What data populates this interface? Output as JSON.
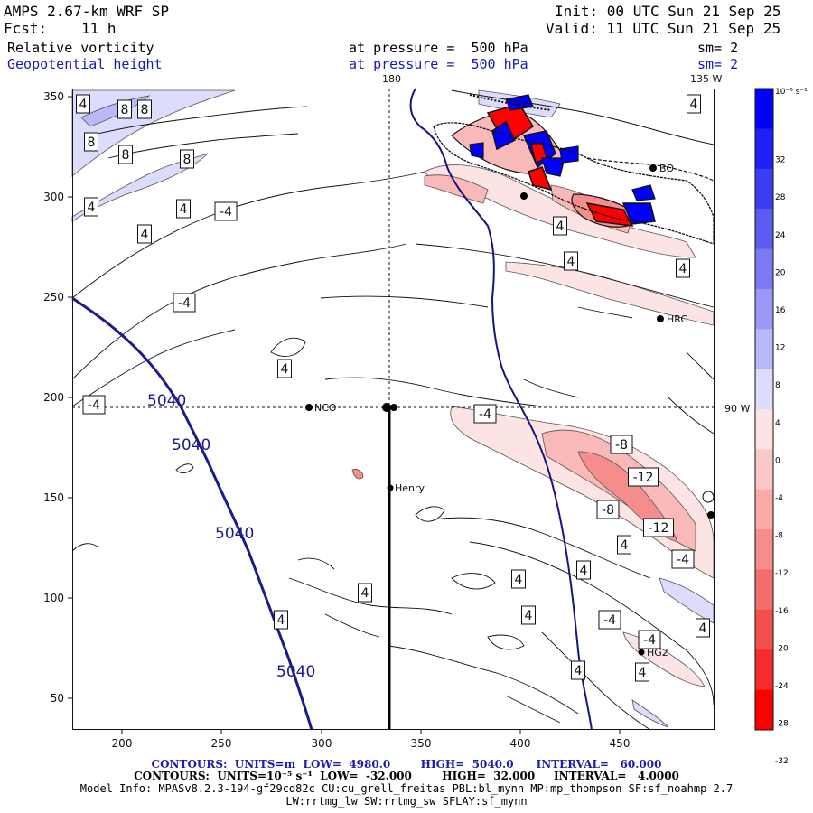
{
  "header": {
    "model": "AMPS 2.67-km WRF SP",
    "init": "Init: 00 UTC Sun 21 Sep 25",
    "fcst_label": "Fcst:",
    "fcst_value": "11 h",
    "valid": "Valid: 11 UTC Sun 21 Sep 25",
    "field1": "Relative vorticity",
    "field1_level": "at pressure =  500 hPa",
    "field1_sm": "sm= 2",
    "field2": "Geopotential height",
    "field2_level": "at pressure =  500 hPa",
    "field2_sm": "sm= 2"
  },
  "map": {
    "top_lon_180": "180",
    "top_lon_135": "135 W",
    "right_lon_90": "90 W",
    "x_ticks": [
      "200",
      "250",
      "300",
      "350",
      "400",
      "450"
    ],
    "y_ticks": [
      "350",
      "300",
      "250",
      "200",
      "150",
      "100",
      "50"
    ],
    "stations": [
      {
        "name": "NCO"
      },
      {
        "name": "Henry"
      },
      {
        "name": "HRC"
      },
      {
        "name": "HG2"
      },
      {
        "name": "BO"
      }
    ],
    "height_labels": [
      "5040",
      "5040",
      "5040",
      "5040"
    ],
    "contour_labels": [
      "4",
      "4",
      "8",
      "8",
      "8",
      "8",
      "8",
      "4",
      "-4",
      "4",
      "4",
      "4",
      "4",
      "4",
      "-4",
      "4",
      "-4",
      "-4",
      "-8",
      "-12",
      "-8",
      "-12",
      "4",
      "-4",
      "4",
      "4",
      "4",
      "4",
      "4",
      "-4",
      "4",
      "-4",
      "4",
      "4"
    ]
  },
  "colorbar": {
    "unit": "10⁻⁵ s⁻¹",
    "labels": [
      "32",
      "28",
      "24",
      "20",
      "16",
      "12",
      "8",
      "4",
      "0",
      "-4",
      "-8",
      "-12",
      "-16",
      "-20",
      "-24",
      "-28",
      "-32"
    ]
  },
  "footer": {
    "line1": "CONTOURS:  UNITS=m  LOW=  4980.0        HIGH=  5040.0      INTERVAL=   60.000",
    "line2": "CONTOURS:  UNITS=10⁻⁵ s⁻¹  LOW=  -32.000        HIGH=  32.000     INTERVAL=   4.0000",
    "line3": "Model Info: MPASv8.2.3-194-gf29cd82c CU:cu_grell_freitas PBL:bl_mynn MP:mp_thompson SF:sf_noahmp 2.7",
    "line4": "LW:rrtmg_lw SW:rrtmg_sw SFLAY:sf_mynn"
  },
  "colors": {
    "height_contour": "#1a1a8c",
    "pos_max": "#0000ff",
    "neg_max": "#ff0000"
  }
}
